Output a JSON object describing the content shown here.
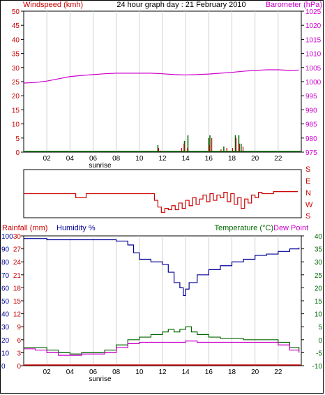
{
  "colors": {
    "wind": "#cc0000",
    "barometer": "#cc00cc",
    "green": "#006600",
    "blue": "#000099",
    "grid": "#d0d0d0",
    "axis": "#000000"
  },
  "chart_data": [
    {
      "type": "line",
      "title": "24 hour graph day : 21 February 2010",
      "ylabel_left": "Windspeed (kmh)",
      "ylabel_right": "Barometer (hPa)",
      "x_ticks": [
        "02",
        "04",
        "06",
        "08",
        "10",
        "12",
        "14",
        "16",
        "18",
        "20",
        "22"
      ],
      "x_annotation": "sunrise",
      "left_ticks": [
        "0",
        "5",
        "10",
        "15",
        "20",
        "25",
        "30",
        "35",
        "40",
        "45",
        "50"
      ],
      "right_ticks": [
        "975",
        "980",
        "985",
        "990",
        "995",
        "1000",
        "1005",
        "1010",
        "1015",
        "1020",
        "1025"
      ],
      "ylim_left": [
        0,
        50
      ],
      "ylim_right": [
        975,
        1025
      ],
      "xlim": [
        0,
        24
      ],
      "series": [
        {
          "role": "barometer",
          "x": [
            0,
            1,
            2,
            3,
            4,
            5,
            6,
            7,
            8,
            9,
            10,
            11,
            12,
            13,
            14,
            15,
            16,
            17,
            18,
            19,
            20,
            21,
            22,
            23,
            23.8
          ],
          "y": [
            999.5,
            999.7,
            1000.2,
            1001,
            1001.8,
            1002.2,
            1002.5,
            1002.8,
            1003,
            1003,
            1003,
            1003,
            1002.8,
            1002.5,
            1002.4,
            1002.5,
            1002.7,
            1003,
            1003.3,
            1003.7,
            1004,
            1004.2,
            1004.2,
            1004,
            1004.1
          ]
        },
        {
          "role": "windspeed",
          "x": [
            11.6,
            11.8,
            13.6,
            13.8,
            14.1,
            16.0,
            16.2,
            17.0,
            17.5,
            18.0,
            18.3,
            18.6,
            18.9
          ],
          "y": [
            1.5,
            0.5,
            1.5,
            3,
            1.5,
            2.5,
            5,
            1,
            1.5,
            1.5,
            5,
            3,
            2
          ]
        },
        {
          "role": "gust",
          "x": [
            11.6,
            13.9,
            14.2,
            16.0,
            16.1,
            17.3,
            18.3,
            18.6,
            18.8
          ],
          "y": [
            2.5,
            4,
            6,
            5,
            6,
            2,
            6,
            6,
            3
          ]
        }
      ]
    },
    {
      "type": "line",
      "title": "",
      "right_labels": [
        "S",
        "E",
        "N",
        "W",
        "S"
      ],
      "ylim": [
        0,
        360
      ],
      "xlim": [
        0,
        24
      ],
      "series": [
        {
          "role": "wind-direction",
          "x": [
            0,
            4.3,
            4.5,
            5.2,
            5.4,
            11,
            11.3,
            11.6,
            11.9,
            12.2,
            12.5,
            12.8,
            13.1,
            13.4,
            13.7,
            14.0,
            14.3,
            14.6,
            14.9,
            15.2,
            15.5,
            15.8,
            16.1,
            16.4,
            16.7,
            17.0,
            17.3,
            17.6,
            17.9,
            18.2,
            18.5,
            18.8,
            19.1,
            19.4,
            19.7,
            20.0,
            20.3,
            20.6,
            21.4,
            21.6,
            23.7
          ],
          "y": [
            180,
            180,
            150,
            150,
            180,
            180,
            130,
            80,
            40,
            70,
            60,
            90,
            60,
            110,
            70,
            130,
            90,
            150,
            100,
            140,
            170,
            120,
            180,
            130,
            170,
            150,
            190,
            120,
            180,
            100,
            150,
            70,
            140,
            110,
            170,
            150,
            190,
            180,
            180,
            195,
            195
          ]
        }
      ]
    },
    {
      "type": "line",
      "title": "",
      "ylabel_left": "Rainfall (mm)",
      "ylabel_left2": "Humidity %",
      "ylabel_right": "Temperature (°C)",
      "ylabel_right2": "Dew Point",
      "x_ticks": [
        "02",
        "04",
        "06",
        "08",
        "10",
        "12",
        "14",
        "16",
        "18",
        "20",
        "22"
      ],
      "x_annotation": "sunrise",
      "humidity_ticks": [
        "0",
        "10",
        "20",
        "30",
        "40",
        "50",
        "60",
        "70",
        "80",
        "90",
        "100"
      ],
      "rain_ticks": [
        "0",
        "3",
        "6",
        "9",
        "12",
        "15",
        "18",
        "21",
        "24",
        "27",
        "30"
      ],
      "temp_ticks": [
        "-10",
        "-5",
        "0",
        "5",
        "10",
        "15",
        "20",
        "25",
        "30",
        "35",
        "40"
      ],
      "ylim_humidity": [
        0,
        100
      ],
      "ylim_temperature": [
        -10,
        40
      ],
      "xlim": [
        0,
        24
      ],
      "series": [
        {
          "role": "humidity",
          "x": [
            0,
            2,
            4,
            6,
            8,
            9,
            9.5,
            10,
            11,
            12,
            12.5,
            13,
            13.5,
            13.8,
            14,
            14.3,
            15,
            16,
            17,
            18,
            19,
            20,
            21,
            22,
            23,
            23.8
          ],
          "y": [
            98,
            97,
            97,
            97,
            96,
            93,
            87,
            82,
            80,
            78,
            72,
            64,
            60,
            54,
            59,
            64,
            70,
            74,
            77,
            80,
            82,
            85,
            86,
            88,
            90,
            91
          ]
        },
        {
          "role": "temperature",
          "x": [
            0,
            1,
            2,
            3,
            4,
            5,
            6,
            7,
            8,
            9,
            10,
            11,
            12,
            12.5,
            13,
            13.5,
            14,
            14.5,
            15,
            16,
            17,
            18,
            19,
            20,
            21,
            22,
            23,
            23.8
          ],
          "y": [
            -3,
            -3,
            -4,
            -5,
            -5.5,
            -5,
            -5,
            -4,
            -2,
            0,
            1,
            2,
            3,
            4,
            3,
            4,
            5,
            3,
            2,
            1,
            0.5,
            0.5,
            0,
            0,
            0,
            -1,
            -3,
            -4
          ]
        },
        {
          "role": "dew-point",
          "x": [
            0,
            1,
            2,
            3,
            4,
            5,
            6,
            7,
            8,
            9,
            10,
            11,
            12,
            13,
            14,
            15,
            16,
            17,
            18,
            19,
            20,
            21,
            22,
            23,
            23.8
          ],
          "y": [
            -3.5,
            -4,
            -5,
            -6,
            -6,
            -5.5,
            -5.5,
            -5,
            -3,
            -1.5,
            -1,
            -1,
            -1,
            -1,
            -0.5,
            -1,
            -1,
            -1,
            -1,
            -1,
            -1,
            -1,
            -2,
            -4,
            -5
          ]
        },
        {
          "role": "rainfall",
          "x": [
            0,
            24
          ],
          "y": [
            0,
            0
          ]
        }
      ]
    }
  ]
}
